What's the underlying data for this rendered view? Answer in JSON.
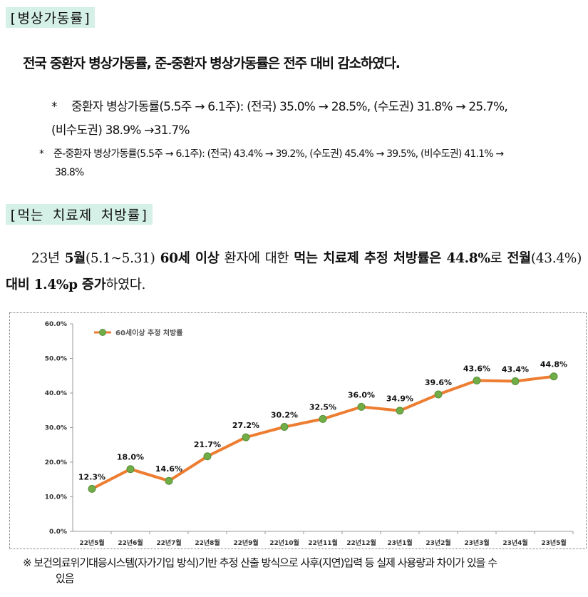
{
  "section1": {
    "title": "[병상가동률]"
  },
  "lead": "전국 중환자 병상가동률, 준-중환자 병상가동률은 전주 대비 감소하였다.",
  "note1": {
    "star": "*",
    "line1": "중환자 병상가동률(5.5주 → 6.1주): (전국) 35.0% → 28.5%, (수도권) 31.8% → 25.7%,",
    "line2": "(비수도권) 38.9% →31.7%"
  },
  "note2": {
    "star": "*",
    "line1": "준-중환자 병상가동률(5.5주 → 6.1주): (전국) 43.4% → 39.2%, (수도권) 45.4% → 39.5%, (비수도권) 41.1% →",
    "line2": "38.8%"
  },
  "section2": {
    "title": "[먹는 치료제 처방률]"
  },
  "para": {
    "p1": "23년 ",
    "b1": "5월",
    "p2": "(5.1~5.31) ",
    "b2": "60세 이상",
    "p3": " 환자에 대한 ",
    "b3": "먹는 치료제 추정 처방률은 44.8%",
    "p4": "로 ",
    "b4": "전월",
    "p5": "(43.4%) ",
    "b5": "대비 1.4%p 증가",
    "p6": "하였다."
  },
  "chart_data": {
    "type": "line",
    "title": "",
    "categories": [
      "22년5월",
      "22년6월",
      "22년7월",
      "22년8월",
      "22년9월",
      "22년10월",
      "22년11월",
      "22년12월",
      "23년1월",
      "23년2월",
      "23년3월",
      "23년4월",
      "23년5월"
    ],
    "series": [
      {
        "name": "60세이상 추정 처방률",
        "values": [
          12.3,
          18.0,
          14.6,
          21.7,
          27.2,
          30.2,
          32.5,
          36.0,
          34.9,
          39.6,
          43.6,
          43.4,
          44.8
        ],
        "labels": [
          "12.3%",
          "18.0%",
          "14.6%",
          "21.7%",
          "27.2%",
          "30.2%",
          "32.5%",
          "36.0%",
          "34.9%",
          "39.6%",
          "43.6%",
          "43.4%",
          "44.8%"
        ]
      }
    ],
    "ylim": [
      0,
      60
    ],
    "yticks": [
      "0.0%",
      "10.0%",
      "20.0%",
      "30.0%",
      "40.0%",
      "50.0%",
      "60.0%"
    ],
    "xlabel": "",
    "ylabel": "",
    "legend": "top-left",
    "colors": {
      "line": "#ed7d31",
      "marker": "#70ad47",
      "marker_edge": "#5b8f3a"
    }
  },
  "footnote": {
    "line1": "※ 보건의료위기대응시스템(자가기입 방식)기반 추정 산출 방식으로 사후(지연)입력 등 실제 사용량과 차이가 있을 수",
    "line2": "있음"
  }
}
